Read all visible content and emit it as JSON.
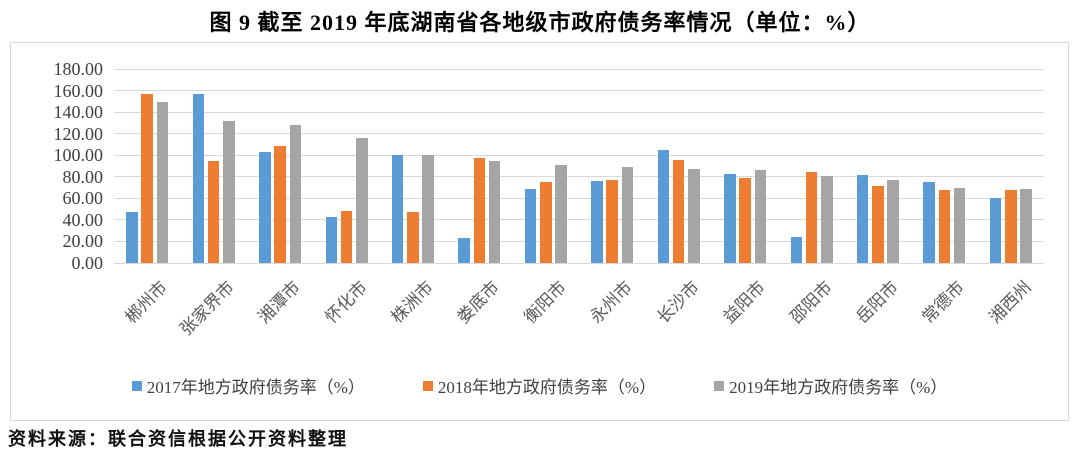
{
  "title": "图 9  截至 2019 年底湖南省各地级市政府债务率情况（单位：%）",
  "source": "资料来源：联合资信根据公开资料整理",
  "colors": {
    "series_2017": "#5B9BD5",
    "series_2018": "#ED7D31",
    "series_2019": "#A5A5A5",
    "gridline": "#D9D9D9",
    "frame_border": "#D9D9D9",
    "axis_text": "#404040",
    "category_text": "#595959"
  },
  "chart_data": {
    "type": "bar",
    "title": "图 9  截至 2019 年底湖南省各地级市政府债务率情况（单位：%）",
    "categories": [
      "郴州市",
      "张家界市",
      "湘潭市",
      "怀化市",
      "株洲市",
      "娄底市",
      "衡阳市",
      "永州市",
      "长沙市",
      "益阳市",
      "邵阳市",
      "岳阳市",
      "常德市",
      "湘西州"
    ],
    "series": [
      {
        "name": "2017年地方政府债务率（%）",
        "color": "#5B9BD5",
        "values": [
          47,
          157,
          103,
          43,
          100,
          23,
          69,
          76,
          105,
          83,
          24,
          82,
          75,
          60
        ]
      },
      {
        "name": "2018年地方政府债务率（%）",
        "color": "#ED7D31",
        "values": [
          157,
          95,
          109,
          48,
          47,
          97,
          75,
          77,
          96,
          79,
          84,
          71,
          68,
          68
        ]
      },
      {
        "name": "2019年地方政府债务率（%）",
        "color": "#A5A5A5",
        "values": [
          149,
          132,
          128,
          116,
          100,
          95,
          91,
          89,
          87,
          86,
          81,
          77,
          70,
          69
        ]
      }
    ],
    "xlabel": "",
    "ylabel": "",
    "ylim": [
      0,
      180
    ],
    "ytick_step": 20,
    "y_ticks": [
      "0.00",
      "20.00",
      "40.00",
      "60.00",
      "80.00",
      "100.00",
      "120.00",
      "140.00",
      "160.00",
      "180.00"
    ],
    "grid": true,
    "legend_position": "bottom"
  }
}
